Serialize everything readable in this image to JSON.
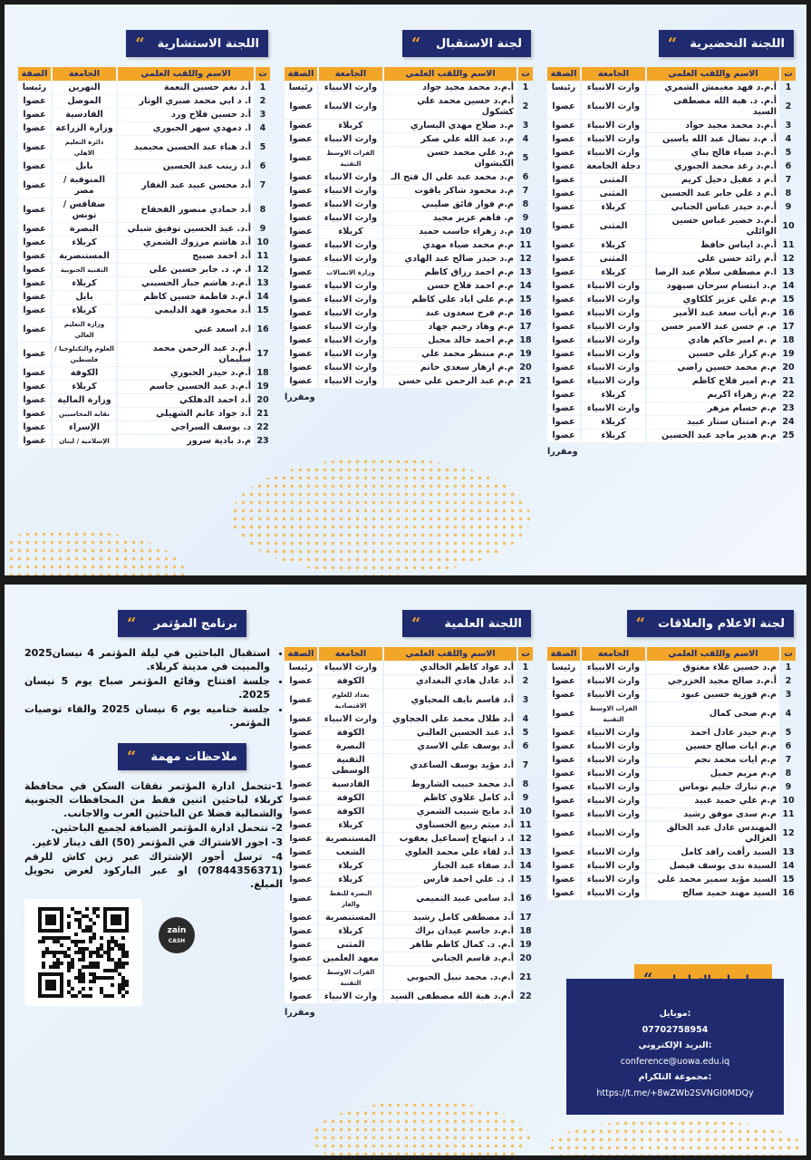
{
  "headers": [
    "ت",
    "الاسم واللقب العلمي",
    "الجامعة",
    "الصفة"
  ],
  "rapporteur": "ومقررا",
  "preparatory": {
    "title": "اللجنة التحضيرية",
    "rows": [
      [
        "1",
        "أ.م.د فهد مغيمش الشمري",
        "وارث الانبياء",
        "رئيسا"
      ],
      [
        "2",
        "أ.م. د. هبة الله مصطفى السيد",
        "وارث الانبياء",
        "عضوا"
      ],
      [
        "3",
        "أ.م.د محمد مجيد جواد",
        "وارث الانبياء",
        "عضوا"
      ],
      [
        "4",
        "أ. م.د نضال عبد الله ياسين",
        "وارث الانبياء",
        "عضوا"
      ],
      [
        "5",
        "أ.م.د ضياء فالح بناي",
        "وارث الانبياء",
        "عضوا"
      ],
      [
        "6",
        "أ.م.د رغد محمد الجبوري",
        "دجلة الجامعة",
        "عضوا"
      ],
      [
        "7",
        "أ.م د عقيل دخيل كريم",
        "المثنى",
        "عضوا"
      ],
      [
        "8",
        "أ.م د علي جابر عبد الحسين",
        "المثنى",
        "عضوا"
      ],
      [
        "9",
        "أ.م.د حيدر عباس الجنابي",
        "كربلاء",
        "عضوا"
      ],
      [
        "10",
        "أ.م.د خضير عباس حسين الوائلي",
        "المثنى",
        "عضوا"
      ],
      [
        "11",
        "أ.م.د ايناس حافظ",
        "كربلاء",
        "عضوا"
      ],
      [
        "12",
        "أ.م رائد حسن علي",
        "المثنى",
        "عضوا"
      ],
      [
        "13",
        "ا.م مصطفى سلام عبد الرضا",
        "كربلاء",
        "عضوا"
      ],
      [
        "14",
        "م.د ابتسام سرحان صيهود",
        "وارث الانبياء",
        "عضوا"
      ],
      [
        "15",
        "م.م علي عزيز كلكاوي",
        "وارث الانبياء",
        "عضوا"
      ],
      [
        "16",
        "م.م أيات سعد عبد الأمير",
        "وارث الانبياء",
        "عضوا"
      ],
      [
        "17",
        "م. م حسن عبد الامير حسن",
        "وارث الانبياء",
        "عضوا"
      ],
      [
        "18",
        "م .م امير حاكم هادي",
        "وارث الانبياء",
        "عضوا"
      ],
      [
        "19",
        "م.م كرار علي حسين",
        "وارث الانبياء",
        "عضوا"
      ],
      [
        "20",
        "م.م محمد حسين راضي",
        "وارث الانبياء",
        "عضوا"
      ],
      [
        "21",
        "م.م امير فلاح كاظم",
        "وارث الانبياء",
        "عضوا"
      ],
      [
        "22",
        "م.م زهراء اكريم",
        "كربلاء",
        "عضوا"
      ],
      [
        "23",
        "م.م حسام مزهر",
        "وارث الانبياء",
        "عضوا"
      ],
      [
        "24",
        "م.م امتنان ستار عبيد",
        "كربلاء",
        "عضوا"
      ],
      [
        "25",
        "م.م هدير ماجد عبد الحسين",
        "كربلاء",
        "عضوا"
      ]
    ]
  },
  "reception": {
    "title": "لجنة الاستقبال",
    "rows": [
      [
        "1",
        "أ.م.د محمد مجيد جواد",
        "وارث الانبياء",
        "رئيسا"
      ],
      [
        "2",
        "أ.م.د حسين محمد علي كشكول",
        "وارث الانبياء",
        "عضوا"
      ],
      [
        "3",
        "م.د صلاح مهدي اليساري",
        "كربلاء",
        "عضوا"
      ],
      [
        "4",
        "م.د عبد الله علي صكر",
        "وارث الانبياء",
        "عضوا"
      ],
      [
        "5",
        "م.د علي محمد حسن الكيشوان",
        "الفرات الاوسط التقنية",
        "عضوا"
      ],
      [
        "6",
        "م.د محمد عبد علي ال فتح الـ",
        "وارث الانبياء",
        "عضوا"
      ],
      [
        "7",
        "م.د محمود شاكر ياقوت",
        "وارث الانبياء",
        "عضوا"
      ],
      [
        "8",
        "م.م فواز فائق صليبي",
        "وارث الانبياء",
        "عضوا"
      ],
      [
        "9",
        "م. فاهم عزيز مجيد",
        "وارث الانبياء",
        "عضوا"
      ],
      [
        "10",
        "م.د زهراء جاسب حميد",
        "كربلاء",
        "عضوا"
      ],
      [
        "11",
        "م.م محمد ضياء مهدي",
        "وارث الانبياء",
        "عضوا"
      ],
      [
        "12",
        "م.د حيدر صالح عبد الهادي",
        "وارث الانبياء",
        "عضوا"
      ],
      [
        "13",
        "م.م احمد رزاق كاظم",
        "وزارة الاتصالات",
        "عضوا"
      ],
      [
        "14",
        "م.م احمد فلاح حسن",
        "وارث الانبياء",
        "عضوا"
      ],
      [
        "15",
        "م.م علي اياد علي كاظم",
        "وارث الانبياء",
        "عضوا"
      ],
      [
        "16",
        "م.م فرح سعدون عبد",
        "وارث الانبياء",
        "عضوا"
      ],
      [
        "17",
        "م.م وهاد رحيم جهاد",
        "وارث الانبياء",
        "عضوا"
      ],
      [
        "18",
        "م.م احمد خالد مجبل",
        "وارث الانبياء",
        "عضوا"
      ],
      [
        "19",
        "م.م منتظر محمد علي",
        "وارث الانبياء",
        "عضوا"
      ],
      [
        "20",
        "م.م ازهار سعدي حاتم",
        "وارث الانبياء",
        "عضوا"
      ],
      [
        "21",
        "م.م عبد الرحمن علي حسن",
        "وارث الانبياء",
        "عضوا"
      ]
    ]
  },
  "advisory": {
    "title": "اللجنة الاستشارية",
    "rows": [
      [
        "1",
        "أ.د نغم حسين النعمة",
        "النهرين",
        "رئيسا"
      ],
      [
        "2",
        "ا. د ابي محمد صبري الوتار",
        "الموصل",
        "عضوا"
      ],
      [
        "3",
        "أ.د حسين فلاح ورد",
        "القادسية",
        "عضوا"
      ],
      [
        "4",
        "ا. دمهدي سهر الجبوري",
        "وزارة الزراعة",
        "عضوا"
      ],
      [
        "5",
        "أ.د هناء عبد الحسين محيميد",
        "دائرة التعليم الاهلي",
        "عضوا"
      ],
      [
        "6",
        "أ.د زينب عبد الحسين",
        "بابل",
        "عضوا"
      ],
      [
        "7",
        "أ.د محسن عبيد عبد الغفار",
        "المنوفية / مصر",
        "عضوا"
      ],
      [
        "8",
        "أ.د حمادي منصور الفخفاخ",
        "صفاقس / تونس",
        "عضوا"
      ],
      [
        "9",
        "أ.د. عبد الحسين توفيق شبلي",
        "البصرة",
        "عضوا"
      ],
      [
        "10",
        "أ.د هاشم مرزوك الشمري",
        "كربلاء",
        "عضوا"
      ],
      [
        "11",
        "أ.د احمد صبيح",
        "المستنصرية",
        "عضوا"
      ],
      [
        "12",
        "ا. م. د. جابر حسين علي",
        "التقنية الجنوبية",
        "عضوا"
      ],
      [
        "13",
        "أ.م.د هاشم جبار الحسيني",
        "كربلاء",
        "عضوا"
      ],
      [
        "14",
        "أ.م.د فاطمة حسين كاظم",
        "بابل",
        "عضوا"
      ],
      [
        "15",
        "أ.د محمود فهد الدليمي",
        "كربلاء",
        "عضوا"
      ],
      [
        "16",
        "ا.د اسعد غني",
        "وزارة التعليم العالي",
        "عضوا"
      ],
      [
        "17",
        "أ.م.د عبد الرحمن محمد سليمان",
        "العلوم والتكنلوجيا / فلسطين",
        "عضوا"
      ],
      [
        "18",
        "أ.م.د حيدر الجبوري",
        "الكوفة",
        "عضوا"
      ],
      [
        "19",
        "أ.م.د عبد الحسين جاسم",
        "كربلاء",
        "عضوا"
      ],
      [
        "20",
        "أ.د احمد الدهلكي",
        "وزارة المالية",
        "عضوا"
      ],
      [
        "21",
        "أ.د جواد غانم الشهيلي",
        "نقابة المحاسبين",
        "عضوا"
      ],
      [
        "22",
        "د. يوسف السراجي",
        "الإسراء",
        "عضوا"
      ],
      [
        "23",
        "م.د بادية سرور",
        "الإسلامية / لبنان",
        "عضوا"
      ]
    ]
  },
  "media": {
    "title": "لجنة الاعلام والعلاقات",
    "rows": [
      [
        "1",
        "م.د حسين علاء معتوق",
        "وارث الانبياء",
        "رئيسا"
      ],
      [
        "2",
        "أ.م.د صالح مجيد الخزرجي",
        "وارث الانبياء",
        "عضوا"
      ],
      [
        "3",
        "م.م فوزية حسين عبود",
        "وارث الانبياء",
        "عضوا"
      ],
      [
        "4",
        "م.م ضحى كمال",
        "الفرات الاوسط التقنية",
        "عضوا"
      ],
      [
        "5",
        "م.م حيدر عادل احمد",
        "وارث الانبياء",
        "عضوا"
      ],
      [
        "6",
        "م.م ايات صالح حسين",
        "وارث الانبياء",
        "عضوا"
      ],
      [
        "7",
        "م.م ايات محمد نجم",
        "وارث الانبياء",
        "عضوا"
      ],
      [
        "8",
        "م.م مريم جميل",
        "وارث الانبياء",
        "عضوا"
      ],
      [
        "9",
        "م.م تبارك حليم نوماس",
        "وارث الانبياء",
        "عضوا"
      ],
      [
        "10",
        "م.م علي حميد عبيد",
        "وارث الانبياء",
        "عضوا"
      ],
      [
        "11",
        "م.م سدى موفق رشيد",
        "وارث الانبياء",
        "عضوا"
      ],
      [
        "12",
        "المهندس عادل عبد الخالق الغزالي",
        "وارث الانبياء",
        "عضوا"
      ],
      [
        "13",
        "السيد رأفت رافد كامل",
        "وارث الانبياء",
        "عضوا"
      ],
      [
        "14",
        "السيدة ندى يوسف فيصل",
        "وارث الانبياء",
        "عضوا"
      ],
      [
        "15",
        "السيد مؤيد سمير محمد علي",
        "وارث الانبياء",
        "عضوا"
      ],
      [
        "16",
        "السيد مهند حميد صالح",
        "وارث الانبياء",
        "عضوا"
      ]
    ]
  },
  "scientific": {
    "title": "اللجنة العلمية",
    "rows": [
      [
        "1",
        "أ.د عواد كاظم الخالدي",
        "وارث الانبياء",
        "رئيسا"
      ],
      [
        "2",
        "أ.د عادل هادي البغدادي",
        "الكوفة",
        "عضوا"
      ],
      [
        "3",
        "أ.د قاسم نايف المحياوي",
        "بغداد للعلوم الاقتصادية",
        "عضوا"
      ],
      [
        "4",
        "أ.د طلال محمد علي الججاوي",
        "وارث الانبياء",
        "عضوا"
      ],
      [
        "5",
        "أ.د عبد الحسين الغالبي",
        "الكوفة",
        "عضوا"
      ],
      [
        "6",
        "أ.د يوسف علي الاسدي",
        "البصرة",
        "عضوا"
      ],
      [
        "7",
        "أ.د مؤيد يوسف الساعدي",
        "التقنية الوسطى",
        "عضوا"
      ],
      [
        "8",
        "أ.د محمد حبيب الشاروط",
        "القادسية",
        "عضوا"
      ],
      [
        "9",
        "أ.د كامل علاوي كاظم",
        "الكوفة",
        "عضوا"
      ],
      [
        "10",
        "أ.د مايح شبيب الشمري",
        "الكوفة",
        "عضوا"
      ],
      [
        "11",
        "أ.د ميثم ربيع الحسناوي",
        "كربلاء",
        "عضوا"
      ],
      [
        "12",
        "ا. د ابتهاج إسماعيل يعقوب",
        "المستنصرية",
        "عضوا"
      ],
      [
        "13",
        "أ.د لقاء علي محمد العلوي",
        "الشعب",
        "عضوا"
      ],
      [
        "14",
        "أ.د صفاء عبد الجبار",
        "كربلاء",
        "عضوا"
      ],
      [
        "15",
        "ا. د. علي احمد فارس",
        "كربلاء",
        "عضوا"
      ],
      [
        "16",
        "أ.د سامي عبيد التميمي",
        "البصرة للنفط والغاز",
        "عضوا"
      ],
      [
        "17",
        "أ.د مصطفى كامل رشيد",
        "المستنصرية",
        "عضوا"
      ],
      [
        "18",
        "أ.م.د جاسم عيدان براك",
        "كربلاء",
        "عضوا"
      ],
      [
        "19",
        "أ.م. د. كمال كاظم ظاهر",
        "المثنى",
        "عضوا"
      ],
      [
        "20",
        "أ.م.د قاسم الجنابي",
        "معهد العلمين",
        "عضوا"
      ],
      [
        "21",
        "أ.م.د. محمد نبيل الحبوبي",
        "الفرات الاوسط التقنية",
        "عضوا"
      ],
      [
        "22",
        "أ.م.د هبة الله مصطفى السيد",
        "وارث الانبياء",
        "عضوا"
      ]
    ]
  },
  "program": {
    "title": "برنامج المؤتمر",
    "items": [
      "استقبال الباحثين في ليلة المؤتمر 4 نيسان2025 والمبيت في مدينة كربلاء.",
      "جلسة افتتاح وقائع المؤتمر صباح يوم 5 نيسان 2025.",
      "جلسة ختاميه يوم 6 نيسان 2025 والقاء توصيات المؤتمر."
    ]
  },
  "notes": {
    "title": "ملاحظات مهمة",
    "items": [
      "1-تتحمل ادارة المؤتمر نفقات السكن في محافظة كربلاء لباحثين اثنين فقط من المحافظات الجنوبية والشمالية فضلا عن الباحثين العرب والاجانب.",
      "2- تتحمل ادارة المؤتمر الضيافة لجميع الباحثين.",
      "3- اجور الاشتراك في المؤتمر (50) الف دينار لاغير.",
      "4- ترسل أجور الإشتراك عبر زين كاش للرقم (07844356371) او عبر الباركود لغرض تحويل المبلغ."
    ]
  },
  "contact": {
    "title": "معلومات التواصل",
    "mobile_label": "موبايل:",
    "mobile": "07702758954",
    "email_label": "البريد الإلكتروني:",
    "email": "conference@uowa.edu.iq",
    "telegram_label": "مجموعة التلكرام:",
    "telegram": "https://t.me/+8wZWb2SVNGI0MDQy"
  },
  "zain_logo": "zain cash",
  "colors": {
    "navy": "#1f2b6e",
    "orange": "#f3a528",
    "background": "#eaf3fb"
  }
}
